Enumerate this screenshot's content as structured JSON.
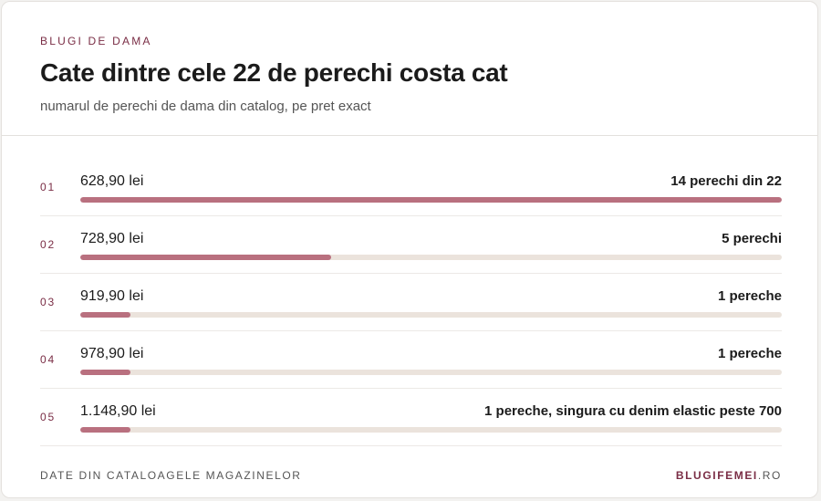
{
  "header": {
    "eyebrow": "BLUGI DE DAMA",
    "title": "Cate dintre cele 22 de perechi costa cat",
    "subtitle": "numarul de perechi de dama din catalog, pe pret exact"
  },
  "colors": {
    "accent": "#7a2d45",
    "bar_fill": "#b9707f",
    "bar_track": "#ebe3dc"
  },
  "chart_data": {
    "type": "bar",
    "orientation": "horizontal",
    "total": 22,
    "rows": [
      {
        "rank": "01",
        "price": "628,90 lei",
        "value": 14,
        "label": "14 perechi din 22"
      },
      {
        "rank": "02",
        "price": "728,90 lei",
        "value": 5,
        "label": "5 perechi"
      },
      {
        "rank": "03",
        "price": "919,90 lei",
        "value": 1,
        "label": "1 pereche"
      },
      {
        "rank": "04",
        "price": "978,90 lei",
        "value": 1,
        "label": "1 pereche"
      },
      {
        "rank": "05",
        "price": "1.148,90 lei",
        "value": 1,
        "label": "1 pereche, singura cu denim elastic peste 700"
      }
    ],
    "xlim": [
      0,
      14
    ]
  },
  "footer": {
    "source": "DATE DIN CATALOAGELE MAGAZINELOR",
    "brand_main": "BLUGIFEMEI",
    "brand_tld": ".RO"
  }
}
